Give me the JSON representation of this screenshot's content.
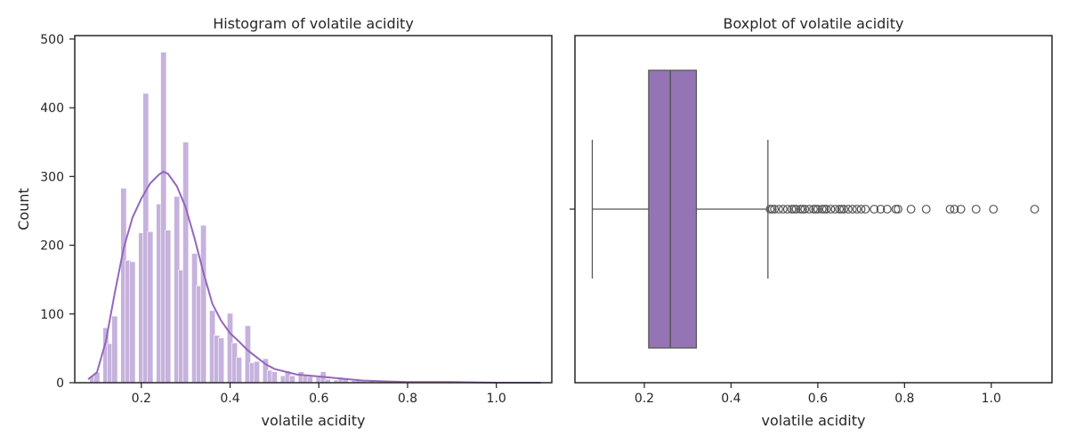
{
  "chart_data": [
    {
      "type": "bar",
      "title": "Histogram of volatile acidity",
      "xlabel": "volatile acidity",
      "ylabel": "Count",
      "xlim": [
        0.05,
        1.125
      ],
      "ylim": [
        0,
        505
      ],
      "x_ticks": [
        "0.2",
        "0.4",
        "0.6",
        "0.8",
        "1.0"
      ],
      "y_ticks": [
        "0",
        "100",
        "200",
        "300",
        "400",
        "500"
      ],
      "grid": false,
      "colors": {
        "bar": "#c6b2dd",
        "bar_edge": "#ffffff",
        "kde": "#9467bd"
      },
      "bins": [
        {
          "x": 0.09,
          "count": 10
        },
        {
          "x": 0.1,
          "count": 15
        },
        {
          "x": 0.12,
          "count": 80
        },
        {
          "x": 0.13,
          "count": 57
        },
        {
          "x": 0.14,
          "count": 97
        },
        {
          "x": 0.16,
          "count": 283
        },
        {
          "x": 0.17,
          "count": 178
        },
        {
          "x": 0.18,
          "count": 176
        },
        {
          "x": 0.2,
          "count": 218
        },
        {
          "x": 0.21,
          "count": 421
        },
        {
          "x": 0.22,
          "count": 220
        },
        {
          "x": 0.24,
          "count": 260
        },
        {
          "x": 0.25,
          "count": 481
        },
        {
          "x": 0.26,
          "count": 222
        },
        {
          "x": 0.28,
          "count": 271
        },
        {
          "x": 0.29,
          "count": 164
        },
        {
          "x": 0.3,
          "count": 350
        },
        {
          "x": 0.32,
          "count": 188
        },
        {
          "x": 0.33,
          "count": 141
        },
        {
          "x": 0.34,
          "count": 229
        },
        {
          "x": 0.36,
          "count": 105
        },
        {
          "x": 0.37,
          "count": 69
        },
        {
          "x": 0.38,
          "count": 65
        },
        {
          "x": 0.4,
          "count": 101
        },
        {
          "x": 0.41,
          "count": 58
        },
        {
          "x": 0.42,
          "count": 37
        },
        {
          "x": 0.44,
          "count": 83
        },
        {
          "x": 0.45,
          "count": 29
        },
        {
          "x": 0.46,
          "count": 31
        },
        {
          "x": 0.48,
          "count": 35
        },
        {
          "x": 0.49,
          "count": 18
        },
        {
          "x": 0.5,
          "count": 16
        },
        {
          "x": 0.52,
          "count": 10
        },
        {
          "x": 0.53,
          "count": 17
        },
        {
          "x": 0.54,
          "count": 10
        },
        {
          "x": 0.56,
          "count": 16
        },
        {
          "x": 0.57,
          "count": 10
        },
        {
          "x": 0.58,
          "count": 9
        },
        {
          "x": 0.6,
          "count": 8
        },
        {
          "x": 0.61,
          "count": 16
        },
        {
          "x": 0.62,
          "count": 5
        },
        {
          "x": 0.64,
          "count": 4
        },
        {
          "x": 0.65,
          "count": 8
        },
        {
          "x": 0.66,
          "count": 7
        },
        {
          "x": 0.68,
          "count": 3
        },
        {
          "x": 0.69,
          "count": 4
        },
        {
          "x": 0.7,
          "count": 2
        },
        {
          "x": 0.72,
          "count": 2
        },
        {
          "x": 0.73,
          "count": 1
        },
        {
          "x": 0.74,
          "count": 2
        },
        {
          "x": 0.76,
          "count": 1
        },
        {
          "x": 0.78,
          "count": 2
        },
        {
          "x": 0.8,
          "count": 1
        },
        {
          "x": 0.82,
          "count": 1
        },
        {
          "x": 0.85,
          "count": 1
        },
        {
          "x": 0.91,
          "count": 1
        },
        {
          "x": 0.93,
          "count": 1
        },
        {
          "x": 0.97,
          "count": 1
        },
        {
          "x": 1.01,
          "count": 1
        },
        {
          "x": 1.1,
          "count": 1
        }
      ],
      "kde": {
        "x": [
          0.08,
          0.1,
          0.12,
          0.14,
          0.16,
          0.18,
          0.2,
          0.22,
          0.24,
          0.25,
          0.26,
          0.28,
          0.3,
          0.32,
          0.34,
          0.36,
          0.38,
          0.4,
          0.42,
          0.44,
          0.46,
          0.48,
          0.5,
          0.55,
          0.6,
          0.65,
          0.7,
          0.75,
          0.8,
          0.9,
          1.0,
          1.1
        ],
        "y": [
          5,
          15,
          60,
          130,
          195,
          240,
          268,
          290,
          303,
          307,
          304,
          286,
          255,
          210,
          160,
          115,
          90,
          72,
          60,
          47,
          37,
          27,
          20,
          12,
          9,
          6,
          3,
          2,
          1,
          1,
          0,
          0
        ]
      }
    },
    {
      "type": "box",
      "title": "Boxplot of volatile acidity",
      "xlabel": "volatile acidity",
      "xlim": [
        0.04,
        1.14
      ],
      "x_ticks": [
        "0.2",
        "0.4",
        "0.6",
        "0.8",
        "1.0"
      ],
      "grid": false,
      "colors": {
        "box": "#9474b4",
        "line": "#555555"
      },
      "whisker_low": 0.08,
      "q1": 0.21,
      "median": 0.26,
      "q3": 0.32,
      "whisker_high": 0.485,
      "outliers": [
        0.49,
        0.495,
        0.5,
        0.51,
        0.52,
        0.53,
        0.54,
        0.545,
        0.55,
        0.56,
        0.565,
        0.57,
        0.58,
        0.59,
        0.595,
        0.6,
        0.61,
        0.615,
        0.62,
        0.63,
        0.64,
        0.65,
        0.655,
        0.66,
        0.67,
        0.68,
        0.69,
        0.7,
        0.71,
        0.73,
        0.745,
        0.76,
        0.78,
        0.785,
        0.815,
        0.85,
        0.905,
        0.915,
        0.93,
        0.965,
        1.005,
        1.1
      ]
    }
  ]
}
